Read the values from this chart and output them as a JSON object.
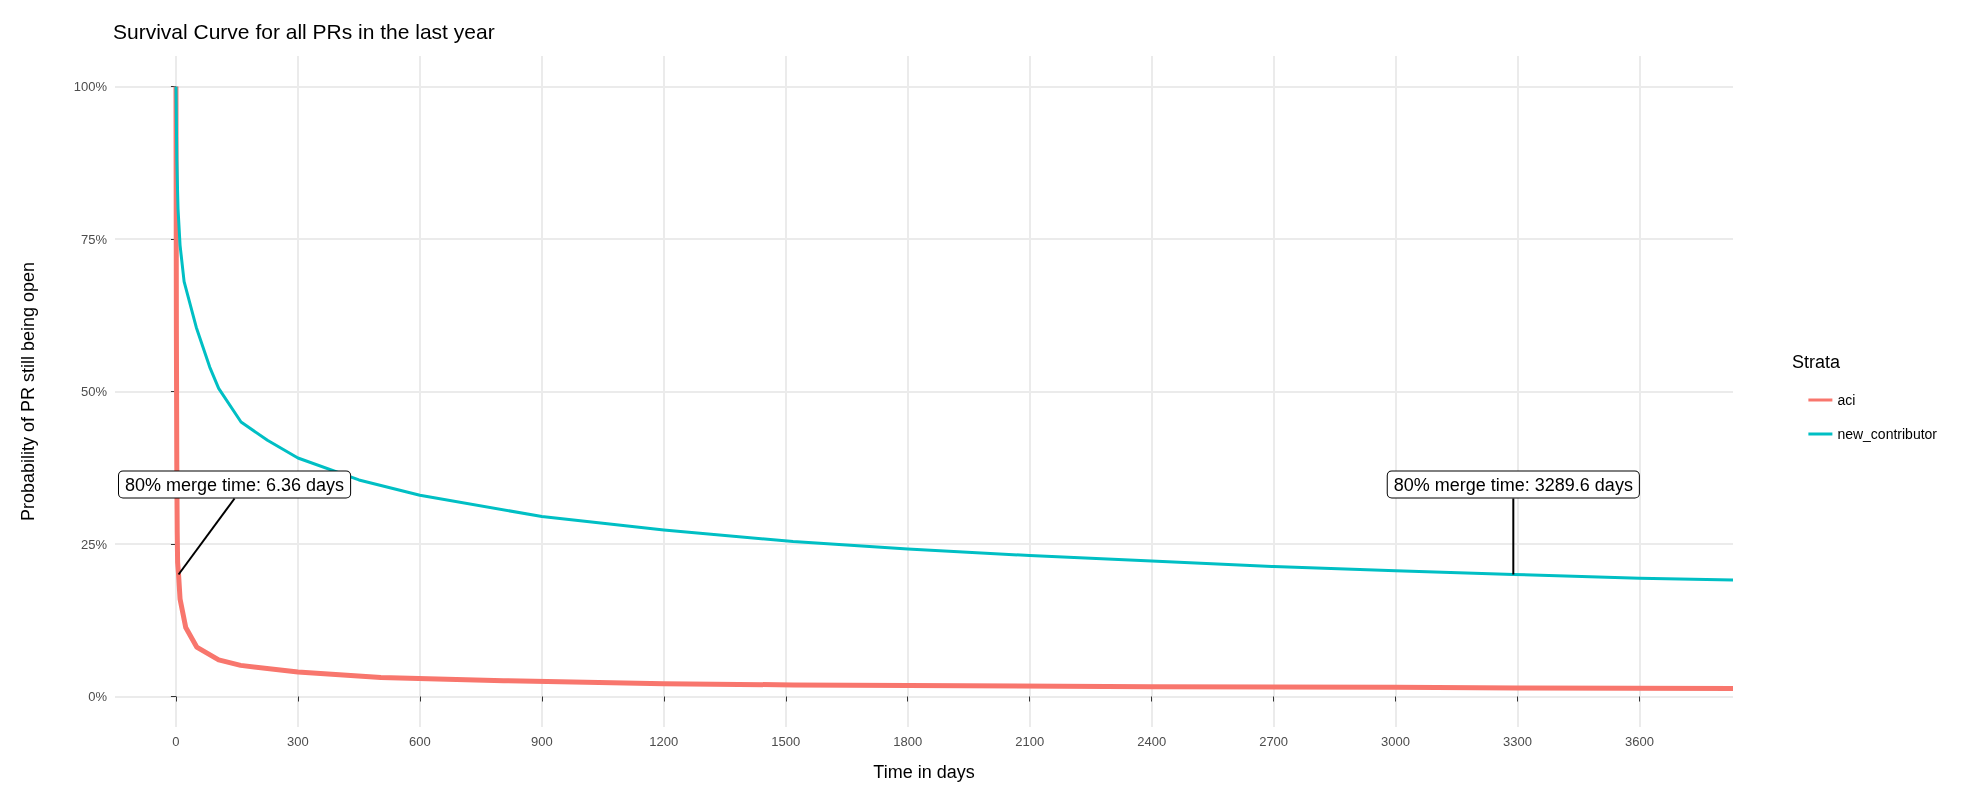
{
  "chart_data": {
    "type": "line",
    "title": "Survival Curve for all PRs in the last year",
    "xlabel": "Time in days",
    "ylabel": "Probability of PR still being open",
    "legend_title": "Strata",
    "legend": "right",
    "grid": true,
    "marker": "none",
    "line_style": "solid",
    "xlim": [
      -150,
      3830
    ],
    "xticks": [
      0,
      300,
      600,
      900,
      1200,
      1500,
      1800,
      2100,
      2400,
      2700,
      3000,
      3300,
      3600
    ],
    "ylim": [
      -5,
      105
    ],
    "yticks": [
      {
        "value": 0,
        "label": "0%"
      },
      {
        "value": 25,
        "label": "25%"
      },
      {
        "value": 50,
        "label": "50%"
      },
      {
        "value": 75,
        "label": "75%"
      },
      {
        "value": 100,
        "label": "100%"
      }
    ],
    "series": [
      {
        "name": "aci",
        "color": "#f8766d",
        "x": [
          0,
          1,
          2,
          3,
          4,
          6.36,
          10,
          24,
          51,
          105,
          159,
          300,
          504,
          806,
          1200,
          1518,
          1800,
          2400,
          3000,
          3300,
          3830
        ],
        "values": [
          100,
          60,
          38,
          27,
          22,
          20,
          16,
          11.3,
          8.1,
          6,
          5.1,
          4,
          3.1,
          2.6,
          2.1,
          1.9,
          1.8,
          1.6,
          1.5,
          1.4,
          1.3
        ]
      },
      {
        "name": "new_contributor",
        "color": "#00bfc4",
        "x": [
          0,
          2,
          5,
          10,
          20,
          50,
          83,
          105,
          160,
          225,
          300,
          450,
          600,
          900,
          1200,
          1518,
          1800,
          2100,
          2400,
          2700,
          3000,
          3289.6,
          3600,
          3830
        ],
        "values": [
          100,
          88,
          80,
          74,
          68,
          60.5,
          54,
          50.5,
          45,
          42,
          39.1,
          35.5,
          33,
          29.5,
          27.3,
          25.4,
          24.2,
          23.1,
          22.2,
          21.3,
          20.6,
          20,
          19.4,
          19.1
        ]
      }
    ],
    "annotations": [
      {
        "text": "80% merge time: 6.36 days",
        "x": 6.36,
        "y": 20
      },
      {
        "text": "80% merge time: 3289.6 days",
        "x": 3289.6,
        "y": 20
      }
    ]
  }
}
